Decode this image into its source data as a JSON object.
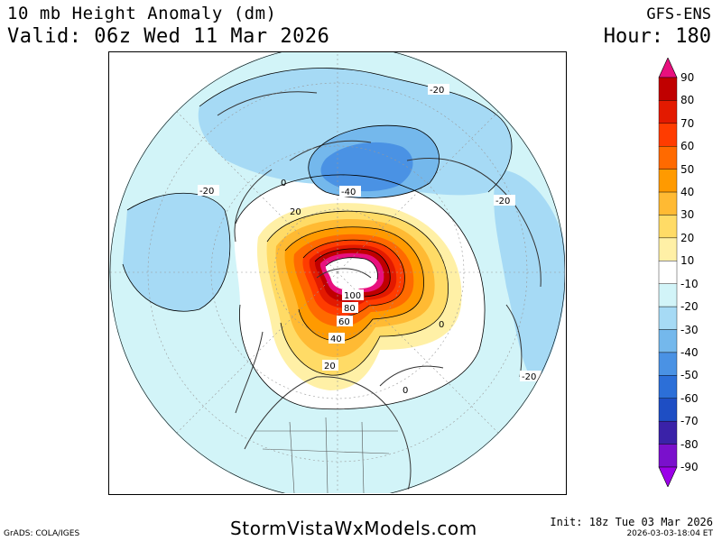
{
  "header": {
    "title": "10 mb Height Anomaly (dm)",
    "valid": "Valid: 06z Wed 11 Mar 2026",
    "model": "GFS-ENS",
    "hour": "Hour: 180"
  },
  "footer": {
    "credit": "GrADS: COLA/IGES",
    "site": "StormVistaWxModels.com",
    "init": "Init: 18z Tue 03 Mar 2026",
    "timestamp": "2026-03-03-18:04 ET"
  },
  "colorbar": {
    "levels": [
      "90",
      "80",
      "70",
      "60",
      "50",
      "40",
      "30",
      "20",
      "10",
      "-10",
      "-20",
      "-30",
      "-40",
      "-50",
      "-60",
      "-70",
      "-80",
      "-90"
    ],
    "colors": [
      "#e8107e",
      "#c00000",
      "#e31a00",
      "#ff3c00",
      "#ff6a00",
      "#ff9a00",
      "#ffba33",
      "#ffdb66",
      "#fff0a6",
      "#ffffff",
      "#d2f4f8",
      "#a6daf5",
      "#74b8ec",
      "#4a92e4",
      "#2c6fd8",
      "#1e4ec4",
      "#3a22a8",
      "#7a10cc",
      "#9b00e8"
    ]
  },
  "map": {
    "contour_labels": [
      "-20",
      "-20",
      "-20",
      "-20",
      "-40",
      "0",
      "20",
      "0",
      "100",
      "80",
      "60",
      "40",
      "20",
      "0"
    ]
  }
}
